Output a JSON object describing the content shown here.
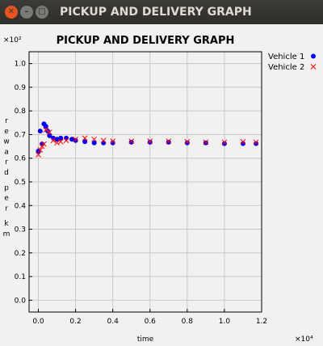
{
  "window": {
    "title": "PICKUP AND DELIVERY GRAPH"
  },
  "colors": {
    "vehicle1": "#0000ff",
    "vehicle2": "#ff0000",
    "grid": "#c8c8c8",
    "close_button": "#e95420"
  },
  "chart_data": {
    "type": "scatter",
    "title": "PICKUP AND DELIVERY GRAPH",
    "xlabel": "time",
    "ylabel": "reward per km",
    "x_multiplier": "×10⁴",
    "y_multiplier": "×10²",
    "xlim": [
      -0.05,
      1.2
    ],
    "ylim": [
      -0.05,
      1.05
    ],
    "x_ticks": [
      0.0,
      0.2,
      0.4,
      0.6,
      0.8,
      1.0,
      1.2
    ],
    "x_tick_labels": [
      "0.0",
      "0.2",
      "0.4",
      "0.6",
      "0.8",
      "1.0",
      "1.2"
    ],
    "y_ticks": [
      0.0,
      0.1,
      0.2,
      0.3,
      0.4,
      0.5,
      0.6,
      0.7,
      0.8,
      0.9,
      1.0
    ],
    "y_tick_labels": [
      "0.0",
      "0.1",
      "0.2",
      "0.3",
      "0.4",
      "0.5",
      "0.6",
      "0.7",
      "0.8",
      "0.9",
      "1.0"
    ],
    "grid": true,
    "legend_position": "right",
    "series": [
      {
        "name": "Vehicle 1",
        "marker": "circle",
        "color": "#0000ff",
        "x": [
          0.0,
          0.01,
          0.02,
          0.03,
          0.04,
          0.05,
          0.06,
          0.08,
          0.1,
          0.12,
          0.15,
          0.18,
          0.2,
          0.25,
          0.3,
          0.35,
          0.4,
          0.5,
          0.6,
          0.7,
          0.8,
          0.9,
          1.0,
          1.1,
          1.17
        ],
        "y": [
          0.63,
          0.715,
          0.66,
          0.745,
          0.735,
          0.715,
          0.695,
          0.685,
          0.68,
          0.685,
          0.685,
          0.68,
          0.675,
          0.67,
          0.665,
          0.665,
          0.665,
          0.668,
          0.668,
          0.668,
          0.665,
          0.665,
          0.662,
          0.662,
          0.662
        ]
      },
      {
        "name": "Vehicle 2",
        "marker": "x",
        "color": "#ff0000",
        "x": [
          0.0,
          0.01,
          0.02,
          0.03,
          0.04,
          0.06,
          0.08,
          0.1,
          0.12,
          0.15,
          0.2,
          0.25,
          0.3,
          0.35,
          0.4,
          0.5,
          0.6,
          0.7,
          0.8,
          0.9,
          1.0,
          1.1,
          1.17
        ],
        "y": [
          0.615,
          0.635,
          0.65,
          0.66,
          0.72,
          0.71,
          0.675,
          0.665,
          0.67,
          0.675,
          0.68,
          0.685,
          0.68,
          0.675,
          0.672,
          0.672,
          0.672,
          0.672,
          0.67,
          0.668,
          0.668,
          0.67,
          0.668
        ]
      }
    ]
  }
}
